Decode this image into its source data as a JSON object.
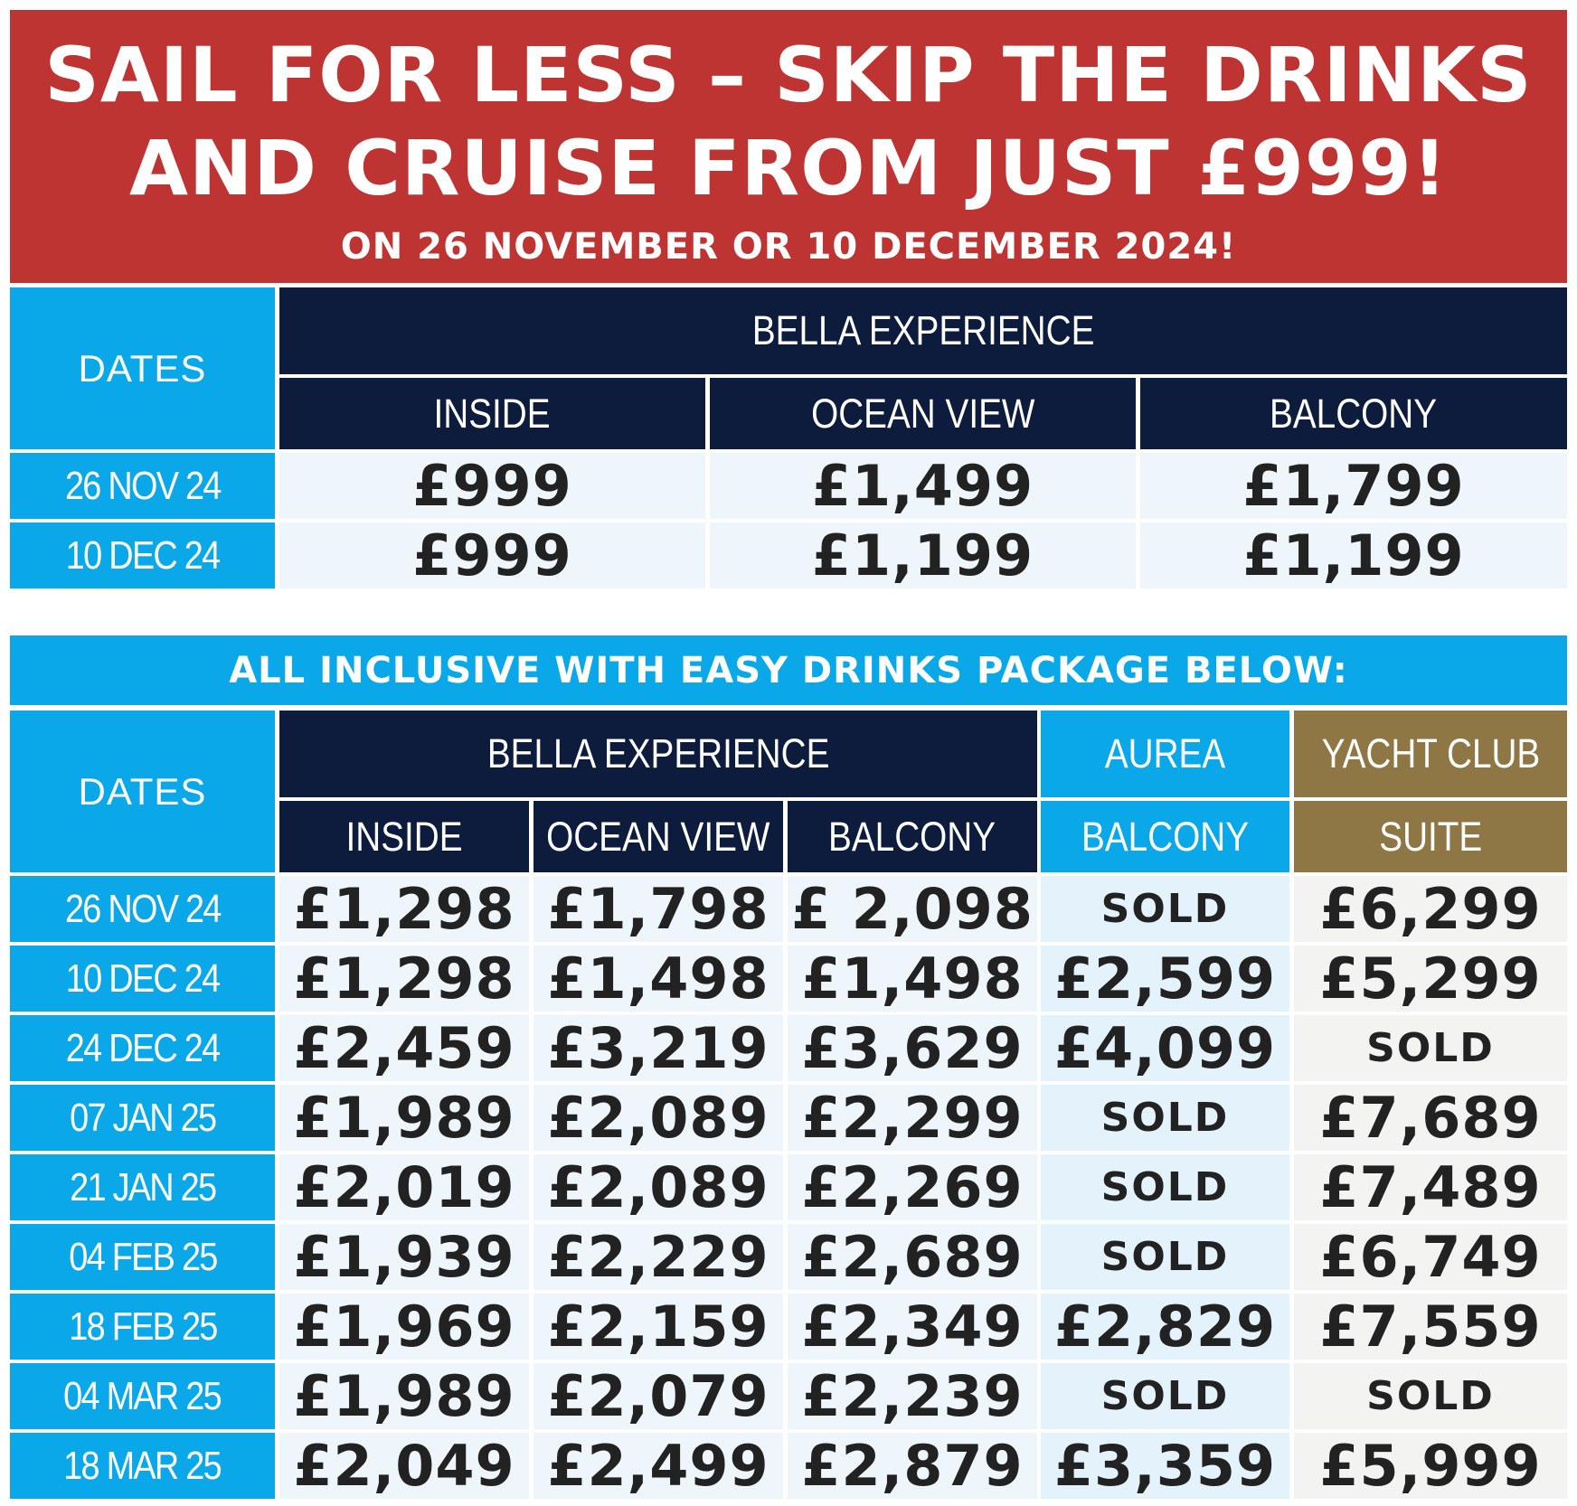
{
  "banner": {
    "line1": "SAIL FOR LESS – SKIP THE DRINKS",
    "line2": "AND CRUISE FROM JUST £999!",
    "line3": "ON 26 NOVEMBER OR 10 DECEMBER 2024!"
  },
  "table1": {
    "dates_header": "DATES",
    "group_header": "BELLA EXPERIENCE",
    "columns": [
      "INSIDE",
      "OCEAN VIEW",
      "BALCONY"
    ],
    "rows": [
      {
        "date": "26 NOV 24",
        "prices": [
          "£999",
          "£1,499",
          "£1,799"
        ]
      },
      {
        "date": "10 DEC 24",
        "prices": [
          "£999",
          "£1,199",
          "£1,199"
        ]
      }
    ]
  },
  "promo": "ALL INCLUSIVE WITH EASY DRINKS PACKAGE BELOW:",
  "table2": {
    "dates_header": "DATES",
    "groups": {
      "bella": "BELLA EXPERIENCE",
      "aurea": "AUREA",
      "yacht": "YACHT CLUB"
    },
    "columns": [
      "INSIDE",
      "OCEAN VIEW",
      "BALCONY",
      "BALCONY",
      "SUITE"
    ],
    "rows": [
      {
        "date": "26 NOV 24",
        "prices": [
          "£1,298",
          "£1,798",
          "£ 2,098",
          "SOLD",
          "£6,299"
        ]
      },
      {
        "date": "10 DEC 24",
        "prices": [
          "£1,298",
          "£1,498",
          "£1,498",
          "£2,599",
          "£5,299"
        ]
      },
      {
        "date": "24 DEC 24",
        "prices": [
          "£2,459",
          "£3,219",
          "£3,629",
          "£4,099",
          "SOLD"
        ]
      },
      {
        "date": "07 JAN 25",
        "prices": [
          "£1,989",
          "£2,089",
          "£2,299",
          "SOLD",
          "£7,689"
        ]
      },
      {
        "date": "21 JAN 25",
        "prices": [
          "£2,019",
          "£2,089",
          "£2,269",
          "SOLD",
          "£7,489"
        ]
      },
      {
        "date": "04 FEB 25",
        "prices": [
          "£1,939",
          "£2,229",
          "£2,689",
          "SOLD",
          "£6,749"
        ]
      },
      {
        "date": "18 FEB 25",
        "prices": [
          "£1,969",
          "£2,159",
          "£2,349",
          "£2,829",
          "£7,559"
        ]
      },
      {
        "date": "04 MAR 25",
        "prices": [
          "£1,989",
          "£2,079",
          "£2,239",
          "SOLD",
          "SOLD"
        ]
      },
      {
        "date": "18 MAR 25",
        "prices": [
          "£2,049",
          "£2,499",
          "£2,879",
          "£3,359",
          "£5,999"
        ]
      }
    ]
  }
}
